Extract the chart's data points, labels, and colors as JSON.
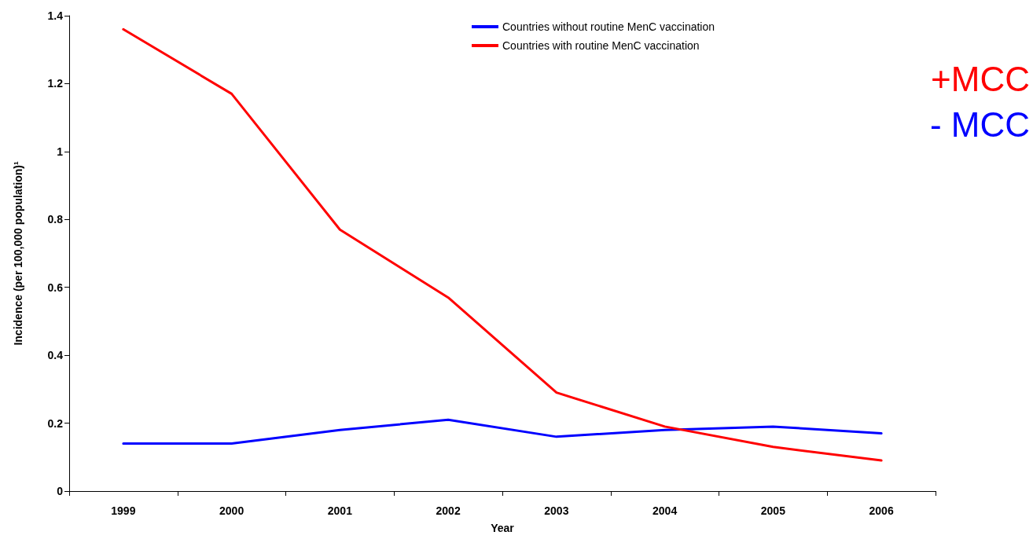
{
  "chart_data": {
    "type": "line",
    "xlabel": "Year",
    "ylabel": "Incidence (per 100,000 population)¹",
    "categories": [
      "1999",
      "2000",
      "2001",
      "2002",
      "2003",
      "2004",
      "2005",
      "2006"
    ],
    "series": [
      {
        "name": "Countries without routine MenC vaccination",
        "color": "#0000ff",
        "values": [
          0.14,
          0.14,
          0.18,
          0.21,
          0.16,
          0.18,
          0.19,
          0.17
        ]
      },
      {
        "name": "Countries with routine MenC vaccination",
        "color": "#ff0000",
        "values": [
          1.36,
          1.17,
          0.77,
          0.57,
          0.29,
          0.19,
          0.13,
          0.09
        ]
      }
    ],
    "ylim": [
      0,
      1.4
    ],
    "yticks": [
      0,
      0.2,
      0.4,
      0.6,
      0.8,
      1,
      1.2,
      1.4
    ],
    "annotations": [
      "+MCC",
      "- MCC"
    ],
    "legend": "top",
    "marker": "none",
    "line_style": "solid",
    "grid": false
  }
}
